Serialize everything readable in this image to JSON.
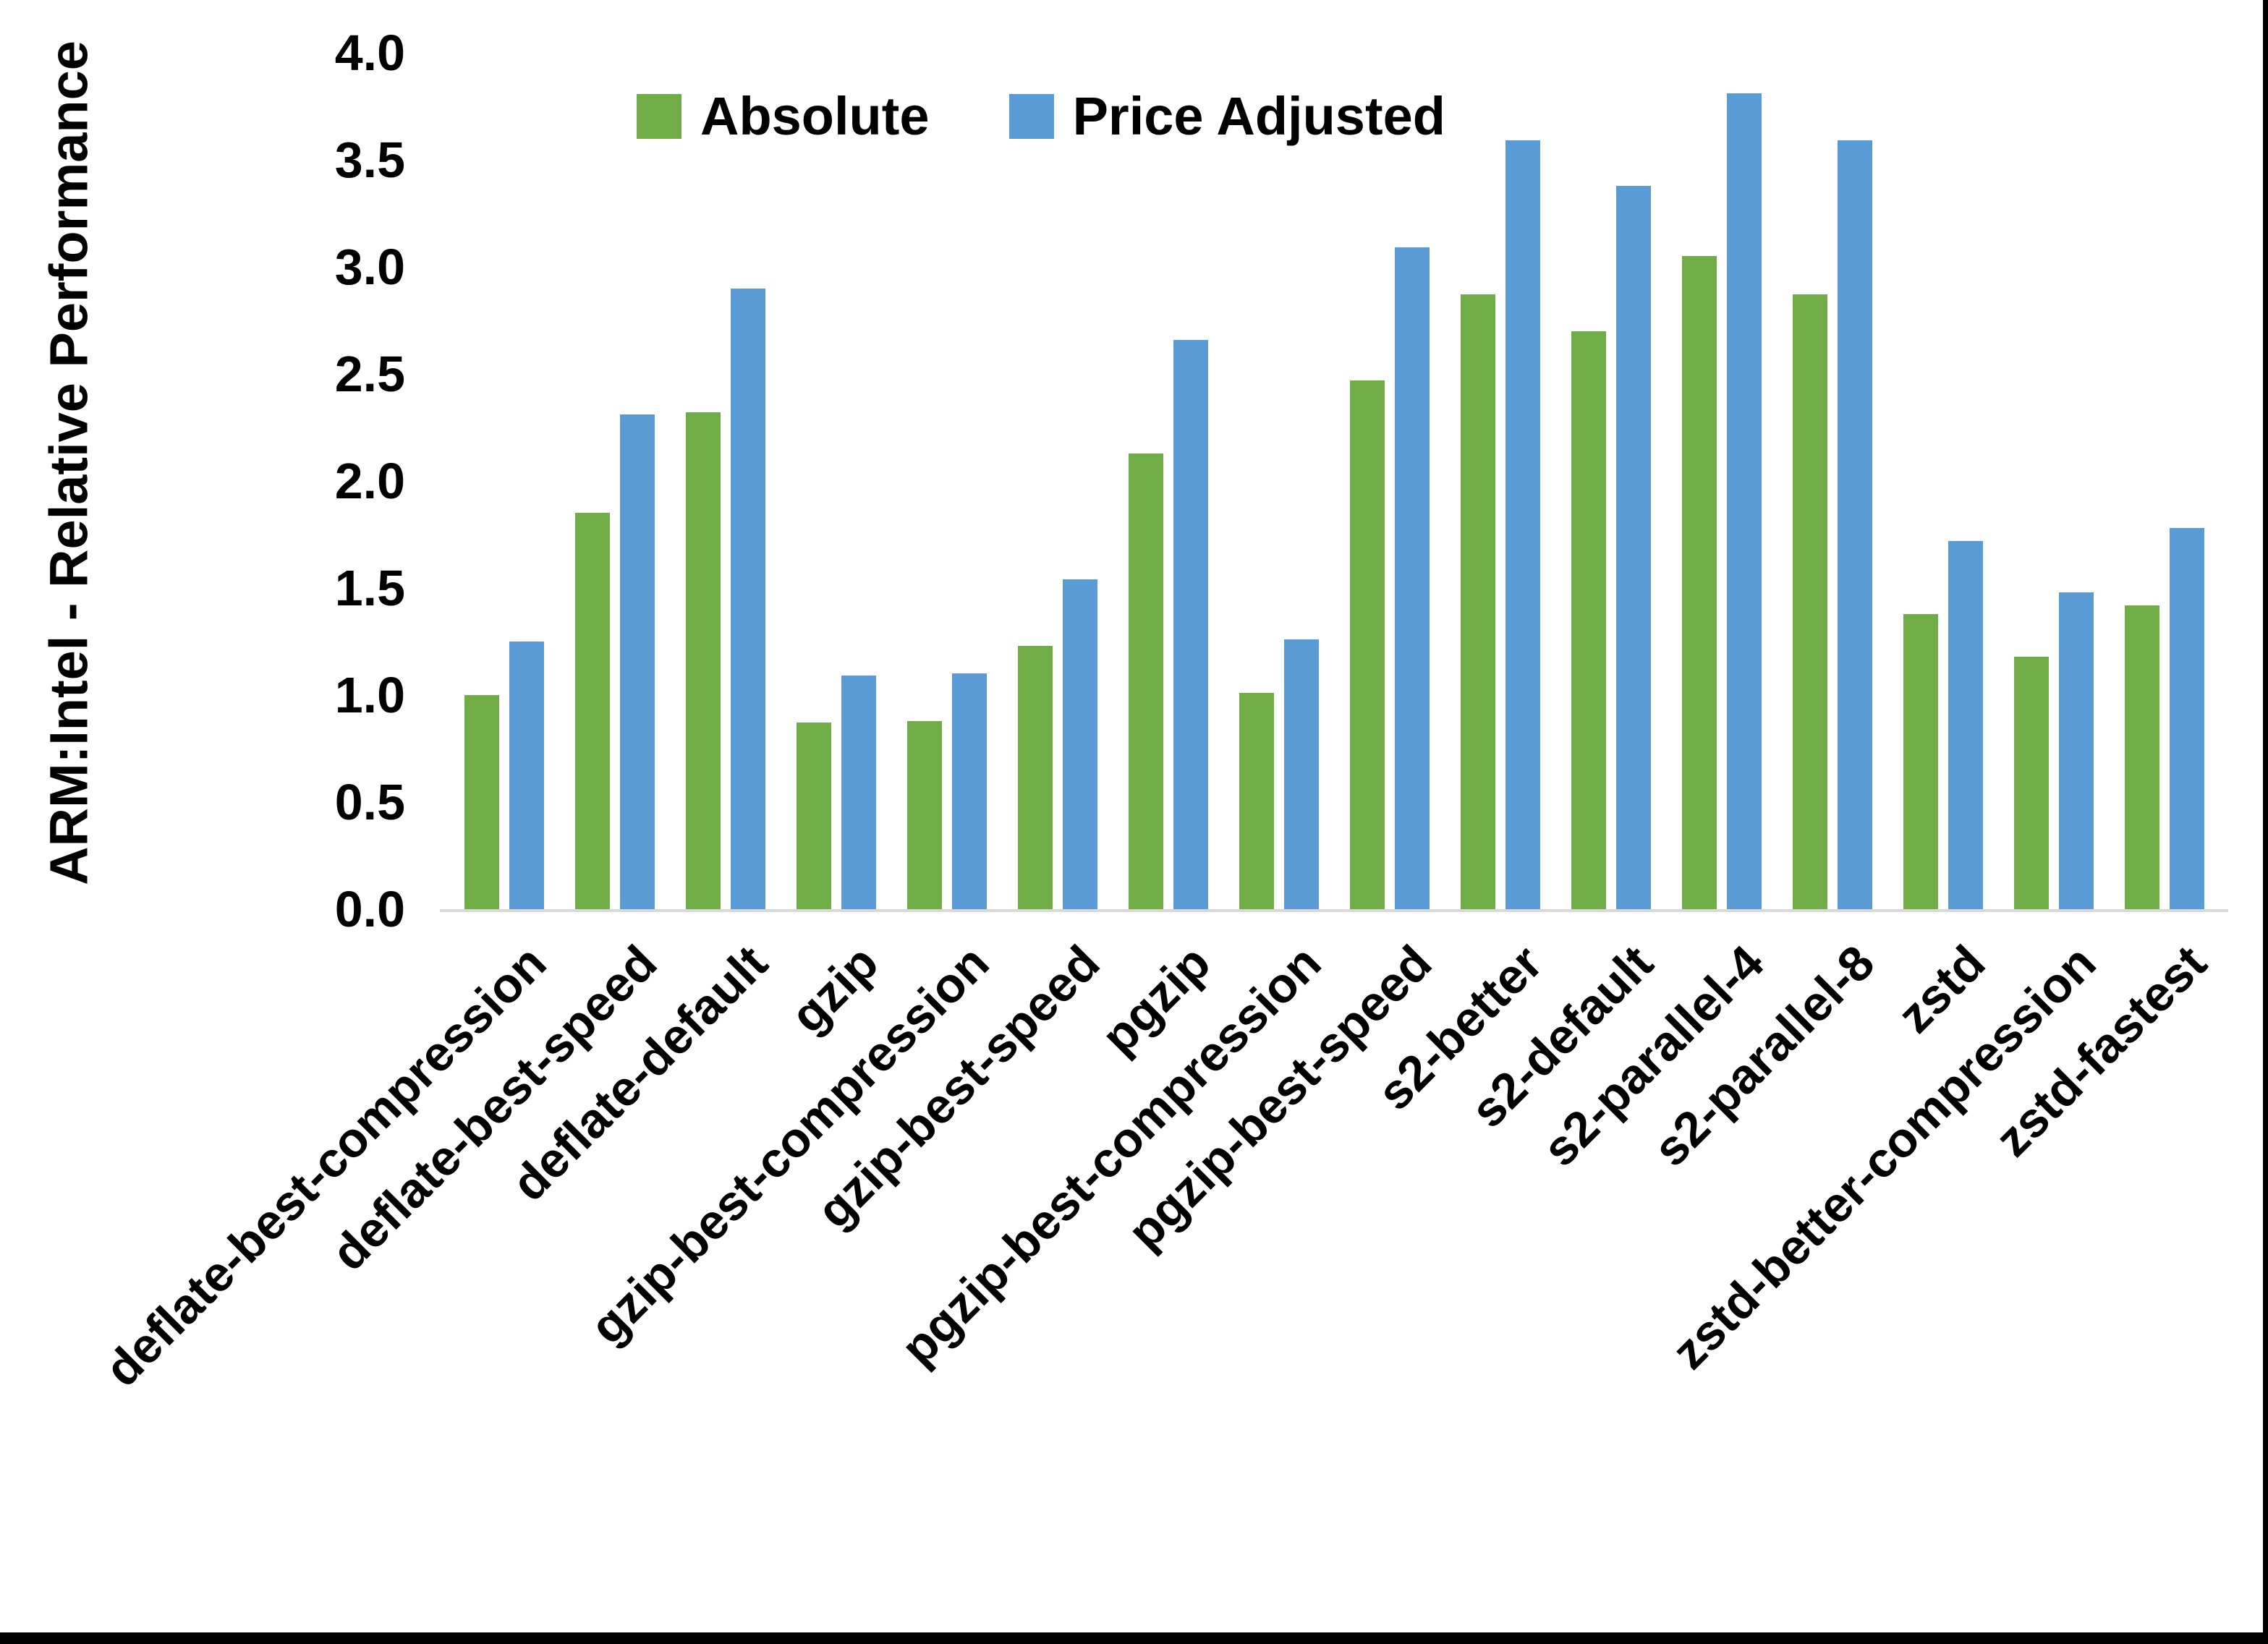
{
  "chart_data": {
    "type": "bar",
    "title": "",
    "xlabel": "",
    "ylabel": "ARM:Intel - Relative Performance",
    "ylim": [
      0.0,
      4.0
    ],
    "ytick_step": 0.5,
    "ytick_labels": [
      "0.0",
      "0.5",
      "1.0",
      "1.5",
      "2.0",
      "2.5",
      "3.0",
      "3.5",
      "4.0"
    ],
    "grid": "off",
    "legend_position": "top",
    "categories": [
      "deflate-best-compression",
      "deflate-best-speed",
      "deflate-default",
      "gzip",
      "gzip-best-compression",
      "gzip-best-speed",
      "pgzip",
      "pgzip-best-compression",
      "pgzip-best-speed",
      "s2-better",
      "s2-default",
      "s2-parallel-4",
      "s2-parallel-8",
      "zstd",
      "zstd-better-compression",
      "zstd-fastest"
    ],
    "series": [
      {
        "name": "Absolute",
        "color": "#70ad47",
        "values": [
          1.0,
          1.85,
          2.32,
          0.87,
          0.88,
          1.23,
          2.13,
          1.01,
          2.47,
          2.87,
          2.7,
          3.05,
          2.87,
          1.38,
          1.18,
          1.42
        ]
      },
      {
        "name": "Price Adjusted",
        "color": "#5b9bd5",
        "values": [
          1.25,
          2.31,
          2.9,
          1.09,
          1.1,
          1.54,
          2.66,
          1.26,
          3.09,
          3.59,
          3.38,
          3.81,
          3.59,
          1.72,
          1.48,
          1.78
        ]
      }
    ],
    "axis_line_color": "#d9d9d9"
  },
  "legend": {
    "absolute_label": "Absolute",
    "price_adjusted_label": "Price Adjusted"
  },
  "axis": {
    "y_title": "ARM:Intel - Relative Performance"
  }
}
